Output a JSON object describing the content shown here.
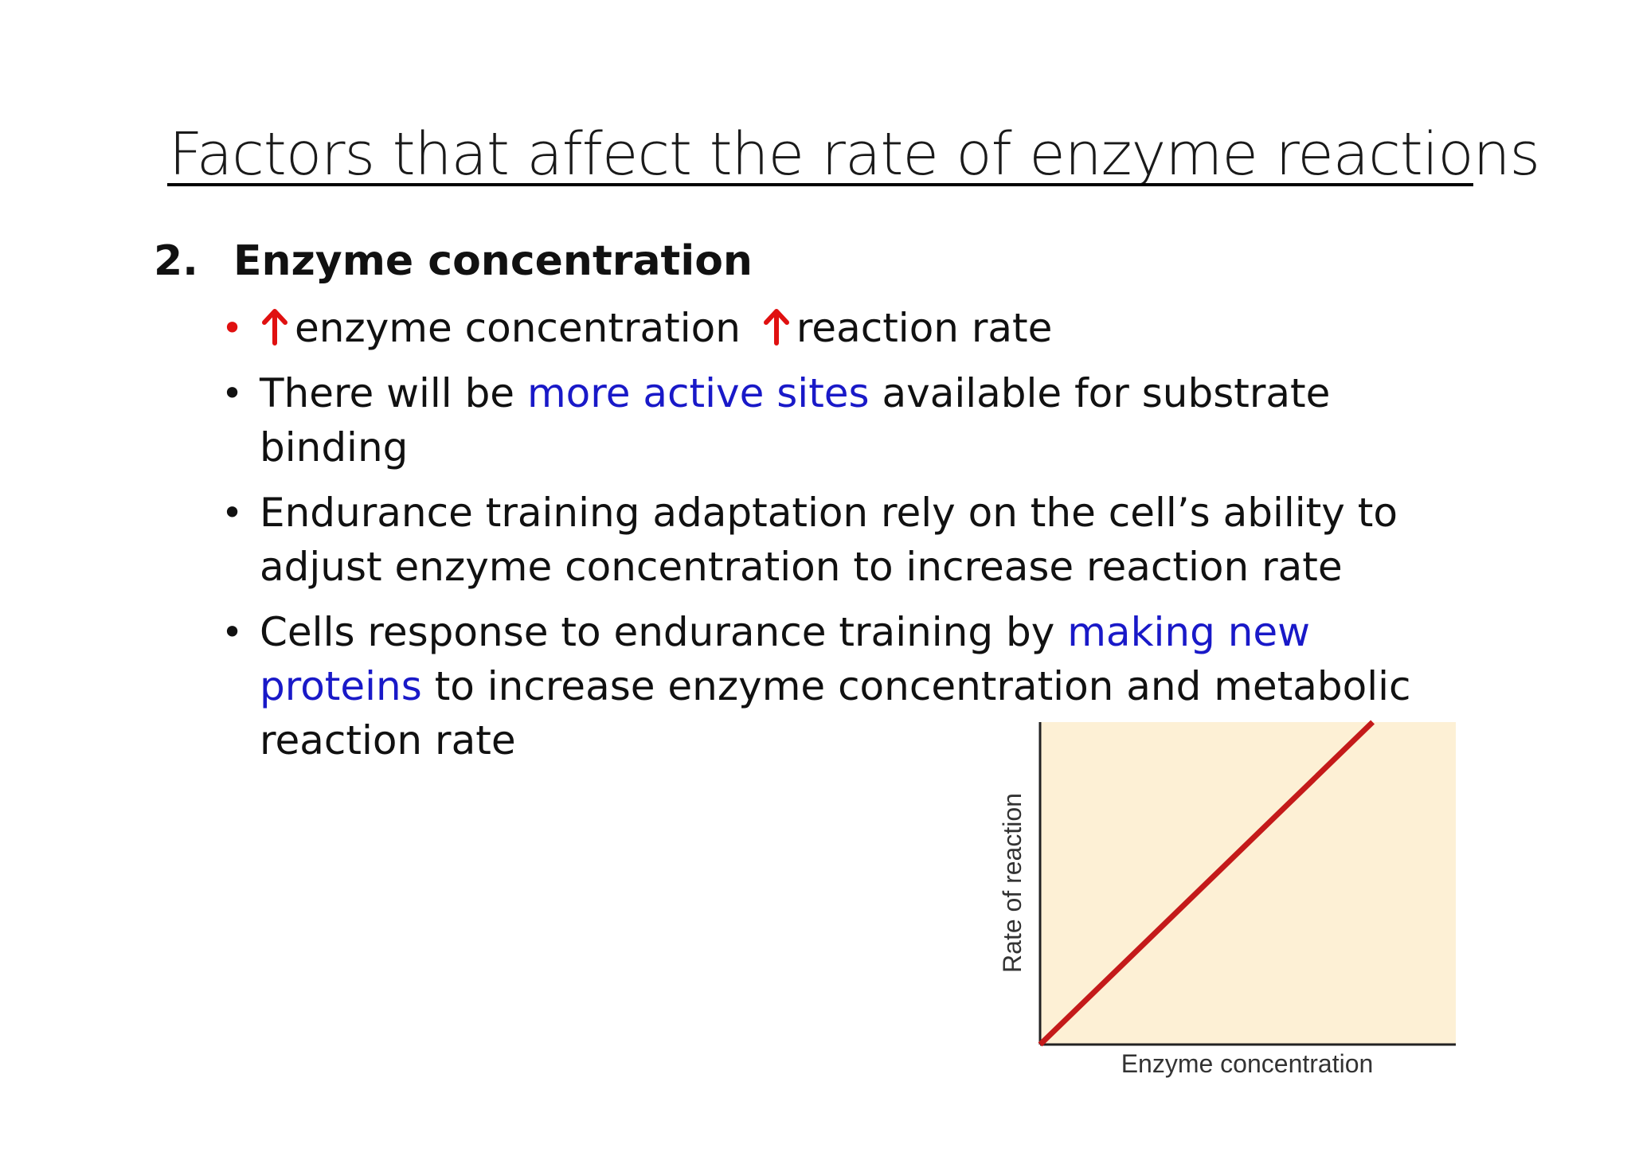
{
  "slide": {
    "title": "Factors that affect the rate of enzyme reactions",
    "section": {
      "number": "2.",
      "heading": "Enzyme concentration"
    },
    "bullets": {
      "b1": {
        "text_a": "enzyme concentration",
        "text_b": "reaction rate",
        "arrow_icon": "up-arrow-icon",
        "arrow_color": "#e01010"
      },
      "b2": {
        "pre": "There will be ",
        "highlight": "more active sites",
        "post": " available for substrate binding"
      },
      "b3": {
        "text": "Endurance training adaptation rely on the cell’s ability to adjust enzyme concentration to increase reaction rate"
      },
      "b4": {
        "pre": "Cells response to endurance training by ",
        "highlight": "making new proteins",
        "post": " to increase enzyme concentration and metabolic reaction rate"
      }
    },
    "colors": {
      "highlight_blue": "#1919c8",
      "accent_red": "#e01010",
      "chart_background": "#fdf0d5",
      "chart_line": "#c41a1a"
    }
  },
  "chart_data": {
    "type": "line",
    "title": "",
    "xlabel": "Enzyme concentration",
    "ylabel": "Rate of reaction",
    "xlim": [
      0,
      1
    ],
    "ylim": [
      0,
      1
    ],
    "grid": false,
    "legend": "none",
    "series": [
      {
        "x": [
          0,
          0.8
        ],
        "y": [
          0,
          1
        ]
      }
    ]
  }
}
